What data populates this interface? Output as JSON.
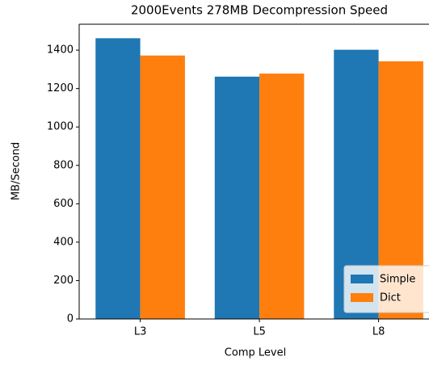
{
  "chart_data": {
    "type": "bar",
    "title": "2000Events 278MB Decompression Speed",
    "xlabel": "Comp Level",
    "ylabel": "MB/Second",
    "categories": [
      "L3",
      "L5",
      "L8"
    ],
    "series": [
      {
        "name": "Simple",
        "color": "#1f77b4",
        "values": [
          1462,
          1262,
          1402
        ]
      },
      {
        "name": "Dict",
        "color": "#ff7f0e",
        "values": [
          1372,
          1278,
          1342
        ]
      }
    ],
    "ylim": [
      0,
      1535
    ],
    "yticks": [
      0,
      200,
      400,
      600,
      800,
      1000,
      1200,
      1400
    ],
    "grid": false,
    "legend": "lower right"
  }
}
